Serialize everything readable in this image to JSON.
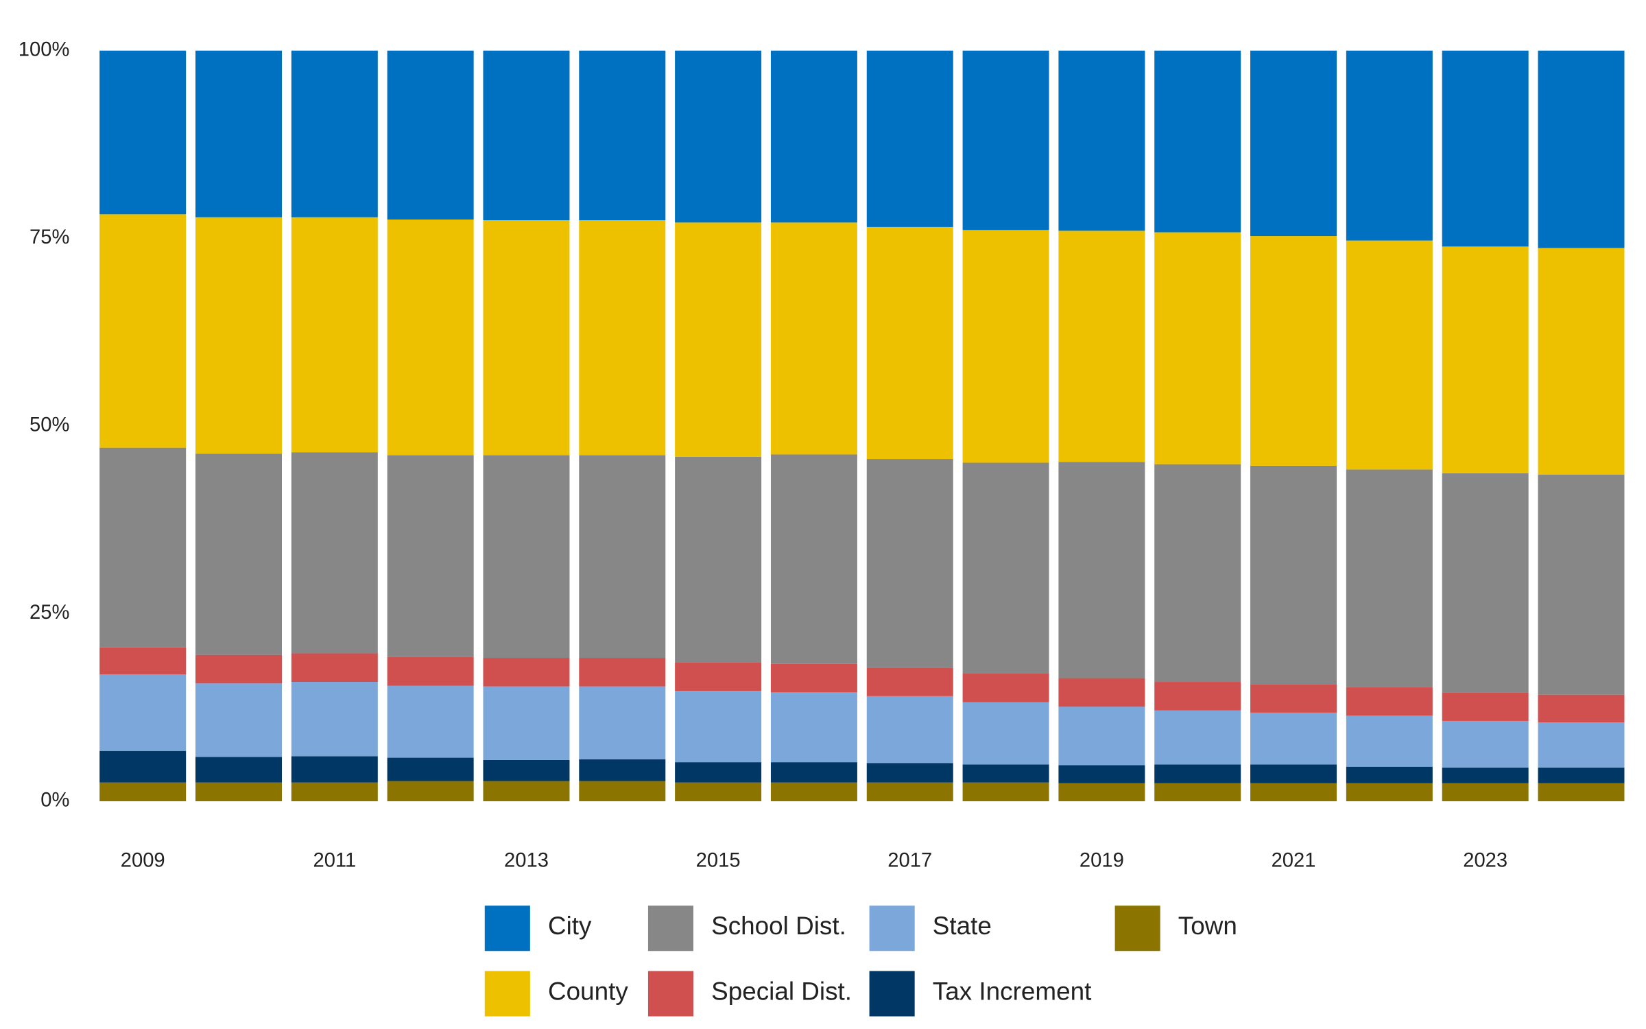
{
  "chart_data": {
    "type": "stacked-bar",
    "categories": [
      "2009",
      null,
      "2011",
      null,
      "2013",
      null,
      "2015",
      null,
      "2017",
      null,
      "2019",
      null,
      "2021",
      null,
      "2023",
      null
    ],
    "ylim": [
      0,
      100
    ],
    "yticks": [
      {
        "value": 0,
        "label": "0%"
      },
      {
        "value": 25,
        "label": "25%"
      },
      {
        "value": 50,
        "label": "50%"
      },
      {
        "value": 75,
        "label": "75%"
      },
      {
        "value": 100,
        "label": "100%"
      }
    ],
    "series": [
      {
        "name": "City",
        "color": "#0070C0",
        "values": [
          21.8,
          22.2,
          22.2,
          22.5,
          22.6,
          22.6,
          22.9,
          22.9,
          23.5,
          23.9,
          24.0,
          24.2,
          24.7,
          25.3,
          26.1,
          26.3
        ]
      },
      {
        "name": "County",
        "color": "#EDC000",
        "values": [
          31.1,
          31.5,
          31.3,
          31.4,
          31.3,
          31.3,
          31.2,
          30.9,
          30.9,
          31.0,
          30.8,
          30.9,
          30.6,
          30.5,
          30.2,
          30.2
        ]
      },
      {
        "name": "School Dist.",
        "color": "#878787",
        "values": [
          26.6,
          26.8,
          26.8,
          26.9,
          27.0,
          27.0,
          27.4,
          27.9,
          27.8,
          28.1,
          28.8,
          29.0,
          29.1,
          29.0,
          29.2,
          29.3
        ]
      },
      {
        "name": "Special Dist.",
        "color": "#D0504F",
        "values": [
          3.6,
          3.8,
          3.8,
          3.8,
          3.8,
          3.8,
          3.8,
          3.8,
          3.8,
          3.8,
          3.8,
          3.8,
          3.8,
          3.8,
          3.8,
          3.7
        ]
      },
      {
        "name": "State",
        "color": "#7BA7DB",
        "values": [
          10.2,
          9.8,
          9.9,
          9.6,
          9.8,
          9.7,
          9.5,
          9.3,
          8.9,
          8.3,
          7.8,
          7.2,
          6.9,
          6.8,
          6.2,
          6.0
        ]
      },
      {
        "name": "Tax Increment",
        "color": "#003764",
        "values": [
          4.2,
          3.4,
          3.5,
          3.1,
          2.8,
          2.9,
          2.7,
          2.7,
          2.6,
          2.4,
          2.4,
          2.5,
          2.5,
          2.2,
          2.1,
          2.1
        ]
      },
      {
        "name": "Town",
        "color": "#8B7500",
        "values": [
          2.5,
          2.5,
          2.5,
          2.7,
          2.7,
          2.7,
          2.5,
          2.5,
          2.5,
          2.5,
          2.4,
          2.4,
          2.4,
          2.4,
          2.4,
          2.4
        ]
      }
    ]
  }
}
